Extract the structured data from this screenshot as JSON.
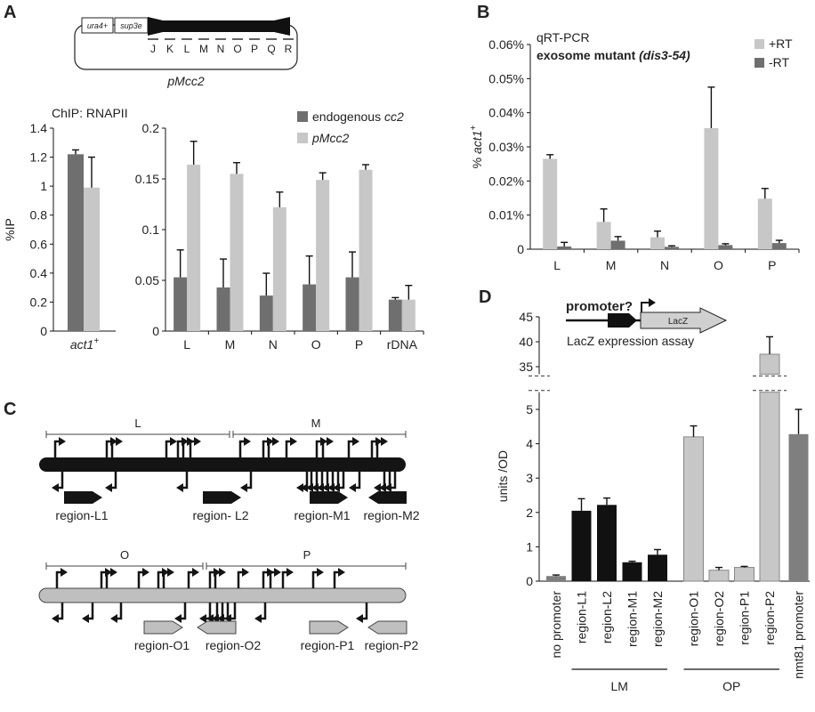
{
  "colors": {
    "dark_gray": "#6f6f6f",
    "light_gray": "#c7c7c7",
    "black": "#111111",
    "nmt81": "#7f7f7f"
  },
  "panel_letters": {
    "A": "A",
    "B": "B",
    "C": "C",
    "D": "D"
  },
  "plasmid": {
    "name": "pMcc2",
    "box1": "ura4+",
    "box2": "sup3e",
    "letters": [
      "J",
      "K",
      "L",
      "M",
      "N",
      "O",
      "P",
      "Q",
      "R"
    ]
  },
  "panelC": {
    "top_labels": [
      "L",
      "M"
    ],
    "top_regions": [
      "region-L1",
      "region- L2",
      "region-M1",
      "region-M2"
    ],
    "bottom_labels": [
      "O",
      "P"
    ],
    "bottom_regions": [
      "region-O1",
      "region-O2",
      "region-P1",
      "region-P2"
    ]
  },
  "lacz_inset": {
    "promoter_label": "promoter?",
    "gene_label": "LacZ",
    "assay_label": "LacZ expression assay"
  },
  "chart_data": [
    {
      "id": "A-left",
      "type": "bar",
      "title": "ChIP: RNAPII",
      "ylabel": "%IP",
      "ylim": [
        0,
        1.4
      ],
      "yticks": [
        "0",
        "0.2",
        "0.4",
        "0.6",
        "0.8",
        "1",
        "1.2",
        "1.4"
      ],
      "categories": [
        "act1+"
      ],
      "category_label": "act1",
      "category_sup": "+",
      "series": [
        {
          "values": [
            1.22
          ],
          "errors": [
            0.03
          ]
        },
        {
          "values": [
            0.99
          ],
          "errors": [
            0.21
          ]
        }
      ]
    },
    {
      "id": "A-right",
      "type": "bar",
      "ylim": [
        0,
        0.2
      ],
      "yticks": [
        "0",
        "0.05",
        "0.1",
        "0.15",
        "0.2"
      ],
      "categories": [
        "L",
        "M",
        "N",
        "O",
        "P",
        "rDNA"
      ],
      "legend_position": "top-right",
      "series": [
        {
          "name": "endogenous cc2",
          "name_plain": "endogenous ",
          "name_italic": "cc2",
          "values": [
            0.053,
            0.043,
            0.035,
            0.046,
            0.053,
            0.031
          ],
          "errors": [
            0.027,
            0.028,
            0.022,
            0.028,
            0.025,
            0.002
          ]
        },
        {
          "name": "pMcc2",
          "name_plain": "",
          "name_italic": "pMcc2",
          "values": [
            0.164,
            0.155,
            0.122,
            0.149,
            0.159,
            0.031
          ],
          "errors": [
            0.023,
            0.011,
            0.015,
            0.007,
            0.005,
            0.014
          ]
        }
      ]
    },
    {
      "id": "B",
      "type": "bar",
      "title": "qRT-PCR",
      "subtitle_plain": "exosome mutant ",
      "subtitle_italic": "(dis3-54)",
      "ylabel_prefix": "% ",
      "ylabel_italic": "act1",
      "ylabel_sup": "+",
      "ylim": [
        0,
        0.06
      ],
      "yticks": [
        "0",
        "0.01%",
        "0.02%",
        "0.03%",
        "0.04%",
        "0.05%",
        "0.06%"
      ],
      "categories": [
        "L",
        "M",
        "N",
        "O",
        "P"
      ],
      "legend_position": "top-right",
      "series": [
        {
          "name": "+RT",
          "values": [
            0.0265,
            0.008,
            0.0035,
            0.0355,
            0.0148
          ],
          "errors": [
            0.0012,
            0.0038,
            0.0018,
            0.012,
            0.003
          ]
        },
        {
          "name": "-RT",
          "values": [
            0.0008,
            0.0025,
            0.0007,
            0.0012,
            0.0018
          ],
          "errors": [
            0.0012,
            0.0012,
            0.0003,
            0.0004,
            0.0008
          ]
        }
      ]
    },
    {
      "id": "D",
      "type": "bar",
      "ylabel": "units /OD",
      "ylim": [
        0,
        45
      ],
      "axis_break": [
        5.5,
        33.5
      ],
      "yticks_lower": [
        "0",
        "1",
        "2",
        "3",
        "4",
        "5"
      ],
      "yticks_upper": [
        "35",
        "40",
        "45"
      ],
      "categories": [
        "no promoter",
        "region-L1",
        "region-L2",
        "region-M1",
        "region-M2",
        "region-O1",
        "region-O2",
        "region-P1",
        "region-P2",
        "nmt81 promoter"
      ],
      "values": [
        0.15,
        2.05,
        2.22,
        0.55,
        0.77,
        4.2,
        0.32,
        0.4,
        37.5,
        4.28
      ],
      "errors": [
        0.03,
        0.35,
        0.2,
        0.03,
        0.15,
        0.32,
        0.08,
        0.03,
        3.5,
        0.72
      ],
      "group_labels": [
        "LM",
        "OP"
      ]
    }
  ]
}
